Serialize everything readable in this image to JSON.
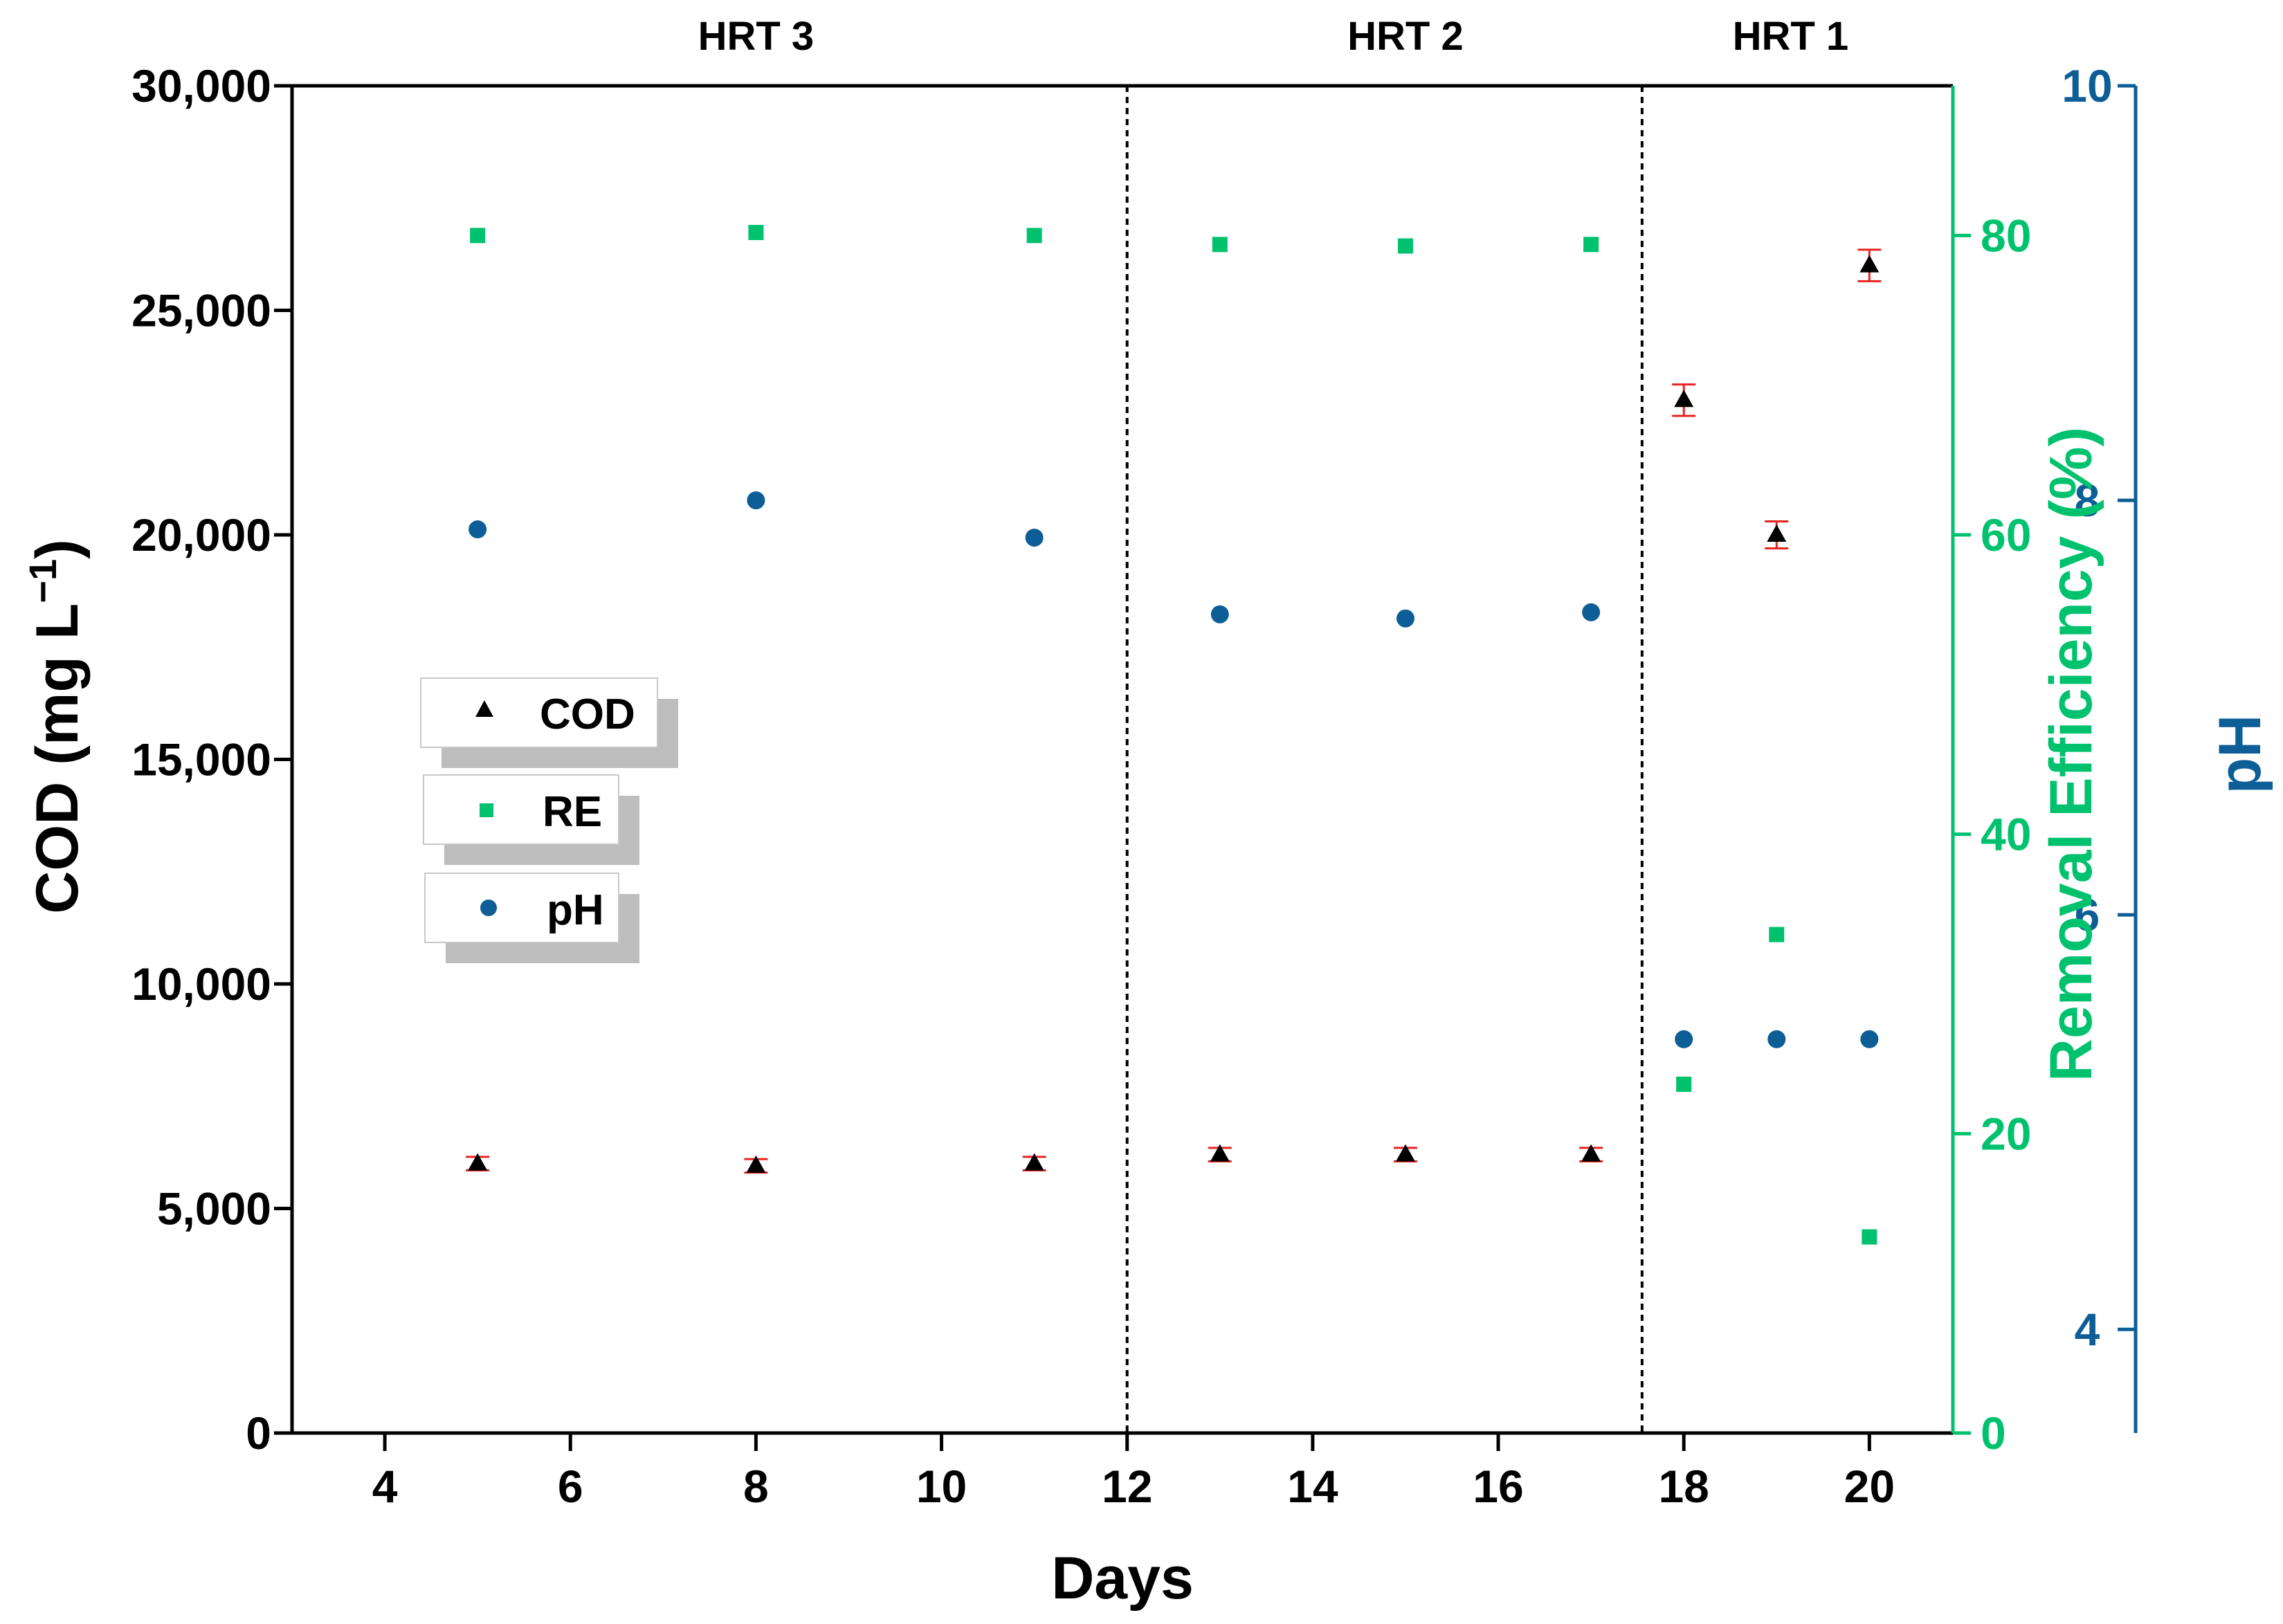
{
  "chart_data": {
    "type": "scatter",
    "xlabel": "Days",
    "x_ticks": [
      "4",
      "6",
      "8",
      "10",
      "12",
      "14",
      "16",
      "18",
      "20"
    ],
    "xlim": [
      3,
      20.9
    ],
    "y_left": {
      "label_main": "COD (mg L",
      "label_sup": "−1",
      "label_close": ")",
      "ticks": [
        "0",
        "5,000",
        "10,000",
        "15,000",
        "20,000",
        "25,000",
        "30,000"
      ],
      "ylim": [
        0,
        30000
      ],
      "color": "#000000"
    },
    "y_right_re": {
      "label": "Removal Efficiency (%)",
      "ticks": [
        "0",
        "20",
        "40",
        "60",
        "80"
      ],
      "ylim": [
        0,
        90
      ],
      "color": "#00c26e"
    },
    "y_right_ph": {
      "label": "pH",
      "ticks": [
        "4",
        "6",
        "8",
        "10"
      ],
      "ylim": [
        3.5,
        10
      ],
      "color": "#0d5e97"
    },
    "phases": [
      {
        "label": "HRT 3",
        "x_center": 8
      },
      {
        "label": "HRT 2",
        "x_center": 15
      },
      {
        "label": "HRT 1",
        "x_center": 19.15
      }
    ],
    "phase_boundaries": [
      12,
      17.55
    ],
    "legend": [
      {
        "name": "COD",
        "marker": "triangle"
      },
      {
        "name": "RE",
        "marker": "square"
      },
      {
        "name": "pH",
        "marker": "circle"
      }
    ],
    "series": [
      {
        "name": "COD",
        "axis": "left",
        "marker": "triangle",
        "color": "#000000",
        "error_color": "#e8231f",
        "points": [
          {
            "x": 5,
            "y": 6000,
            "err": 150
          },
          {
            "x": 8,
            "y": 5950,
            "err": 150
          },
          {
            "x": 11,
            "y": 6000,
            "err": 150
          },
          {
            "x": 13,
            "y": 6200,
            "err": 150
          },
          {
            "x": 15,
            "y": 6200,
            "err": 150
          },
          {
            "x": 17,
            "y": 6200,
            "err": 150
          },
          {
            "x": 18,
            "y": 23000,
            "err": 350
          },
          {
            "x": 19,
            "y": 20000,
            "err": 300
          },
          {
            "x": 20,
            "y": 26000,
            "err": 350
          }
        ]
      },
      {
        "name": "RE",
        "axis": "re",
        "marker": "square",
        "color": "#00c26e",
        "points": [
          {
            "x": 5,
            "y": 80
          },
          {
            "x": 8,
            "y": 80.2
          },
          {
            "x": 11,
            "y": 80
          },
          {
            "x": 13,
            "y": 79.4
          },
          {
            "x": 15,
            "y": 79.3
          },
          {
            "x": 17,
            "y": 79.4
          },
          {
            "x": 18,
            "y": 23.3
          },
          {
            "x": 19,
            "y": 33.3
          },
          {
            "x": 20,
            "y": 13.1
          }
        ]
      },
      {
        "name": "pH",
        "axis": "ph",
        "marker": "circle",
        "color": "#0d5e97",
        "points": [
          {
            "x": 5,
            "y": 7.86
          },
          {
            "x": 8,
            "y": 8.0
          },
          {
            "x": 11,
            "y": 7.82
          },
          {
            "x": 13,
            "y": 7.45
          },
          {
            "x": 15,
            "y": 7.43
          },
          {
            "x": 17,
            "y": 7.46
          },
          {
            "x": 18,
            "y": 5.4
          },
          {
            "x": 19,
            "y": 5.4
          },
          {
            "x": 20,
            "y": 5.4
          }
        ]
      }
    ]
  }
}
